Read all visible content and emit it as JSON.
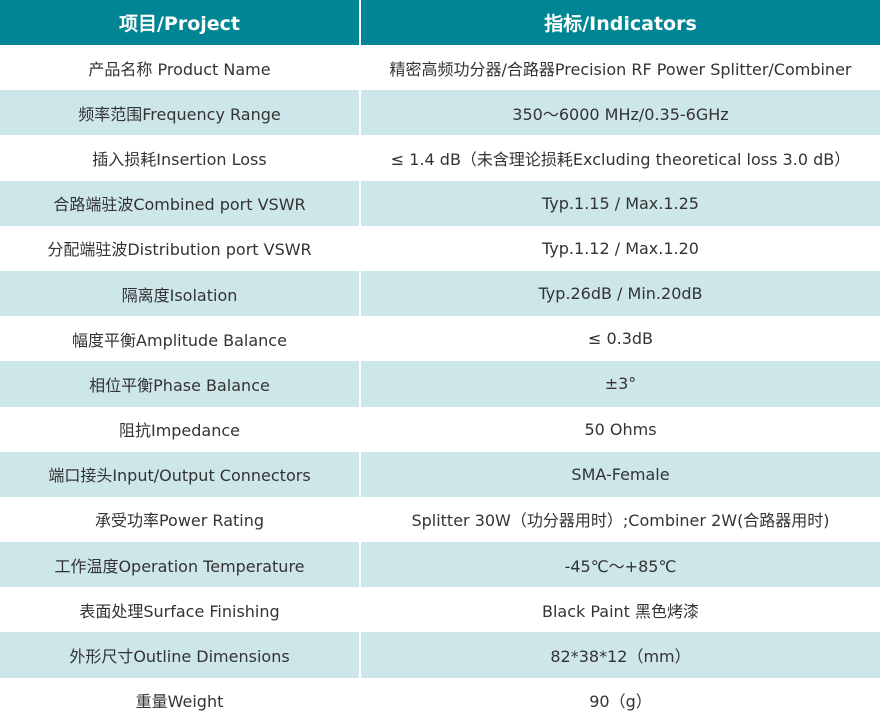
{
  "header": {
    "project": "项目/Project",
    "indicators": "指标/Indicators"
  },
  "colors": {
    "header_bg": "#008594",
    "alt_row_bg": "#cde6ea",
    "text": "#333333"
  },
  "rows": [
    {
      "project": "产品名称 Product Name",
      "value": "精密高频功分器/合路器Precision RF Power Splitter/Combiner"
    },
    {
      "project": "频率范围Frequency Range",
      "value": "350～6000 MHz/0.35-6GHz"
    },
    {
      "project": "插入损耗Insertion Loss",
      "value": "≤ 1.4 dB（未含理论损耗Excluding theoretical loss 3.0 dB）"
    },
    {
      "project": "合路端驻波Combined port VSWR",
      "value": "Typ.1.15 / Max.1.25"
    },
    {
      "project": "分配端驻波Distribution port VSWR",
      "value": "Typ.1.12 / Max.1.20"
    },
    {
      "project": "隔离度Isolation",
      "value": "Typ.26dB / Min.20dB"
    },
    {
      "project": "幅度平衡Amplitude Balance",
      "value": "≤ 0.3dB"
    },
    {
      "project": "相位平衡Phase Balance",
      "value": "±3°"
    },
    {
      "project": "阻抗Impedance",
      "value": "50 Ohms"
    },
    {
      "project": "端口接头Input/Output Connectors",
      "value": "SMA-Female"
    },
    {
      "project": "承受功率Power Rating",
      "value": "Splitter 30W（功分器用时）;Combiner 2W(合路器用时)"
    },
    {
      "project": "工作温度Operation Temperature",
      "value": "-45℃～+85℃"
    },
    {
      "project": "表面处理Surface Finishing",
      "value": "Black Paint 黑色烤漆"
    },
    {
      "project": "外形尺寸Outline Dimensions",
      "value": "82*38*12（mm）"
    },
    {
      "project": "重量Weight",
      "value": "90（g）"
    }
  ]
}
